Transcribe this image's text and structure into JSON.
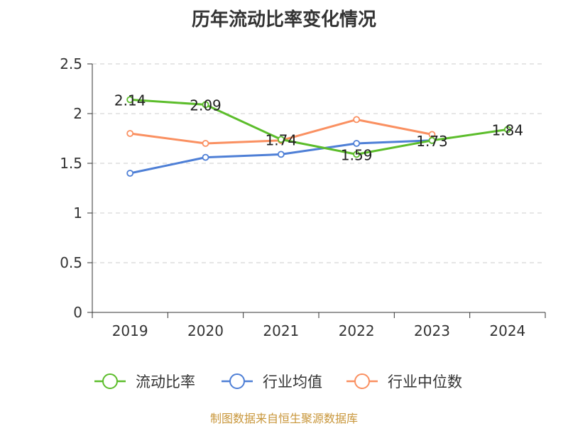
{
  "chart_data": {
    "type": "line",
    "title": "历年流动比率变化情况",
    "categories": [
      "2019",
      "2020",
      "2021",
      "2022",
      "2023",
      "2024"
    ],
    "ylim": [
      0,
      2.5
    ],
    "yticks": [
      "0",
      "0.5",
      "1",
      "1.5",
      "2",
      "2.5"
    ],
    "grid": true,
    "legend_position": "bottom",
    "series": [
      {
        "name": "流动比率",
        "color": "#5cbd2b",
        "values": [
          2.14,
          2.09,
          1.74,
          1.59,
          1.73,
          1.84
        ],
        "labels": [
          "2.14",
          "2.09",
          "1.74",
          "1.59",
          "1.73",
          "1.84"
        ]
      },
      {
        "name": "行业均值",
        "color": "#4e7fd6",
        "values": [
          1.4,
          1.56,
          1.59,
          1.7,
          1.73,
          null
        ]
      },
      {
        "name": "行业中位数",
        "color": "#fa9061",
        "values": [
          1.8,
          1.7,
          1.73,
          1.94,
          1.79,
          null
        ]
      }
    ]
  },
  "source_text": "制图数据来自恒生聚源数据库",
  "source_color": "#c8963a"
}
